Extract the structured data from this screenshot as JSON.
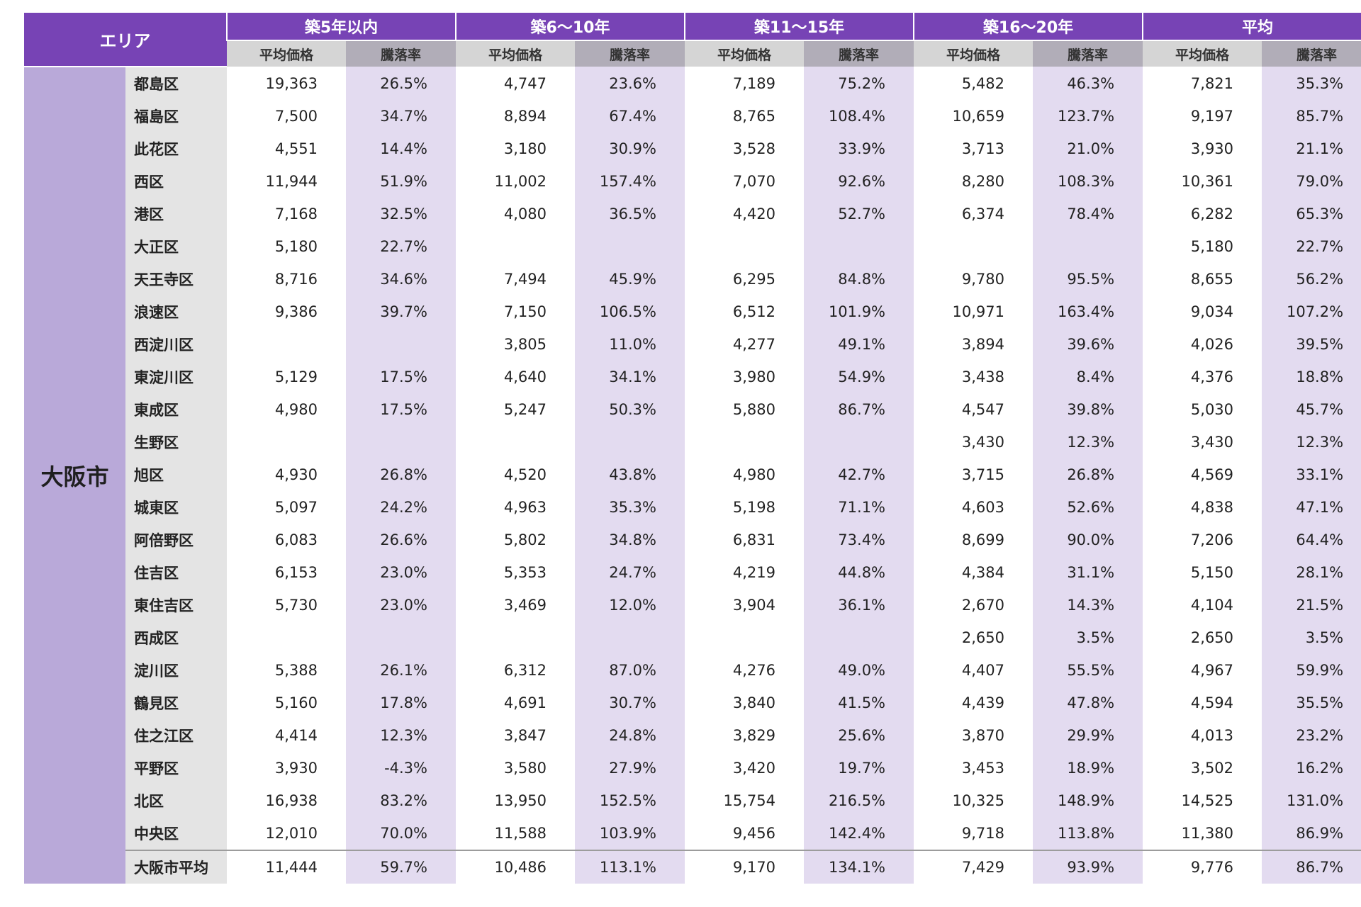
{
  "header": {
    "area_label": "エリア",
    "groups": [
      "築5年以内",
      "築6〜10年",
      "築11〜15年",
      "築16〜20年",
      "平均"
    ],
    "price_label": "平均価格",
    "rate_label": "騰落率"
  },
  "area": "大阪市",
  "rows": [
    {
      "name": "都島区",
      "v": [
        "19,363",
        "26.5%",
        "4,747",
        "23.6%",
        "7,189",
        "75.2%",
        "5,482",
        "46.3%",
        "7,821",
        "35.3%"
      ]
    },
    {
      "name": "福島区",
      "v": [
        "7,500",
        "34.7%",
        "8,894",
        "67.4%",
        "8,765",
        "108.4%",
        "10,659",
        "123.7%",
        "9,197",
        "85.7%"
      ]
    },
    {
      "name": "此花区",
      "v": [
        "4,551",
        "14.4%",
        "3,180",
        "30.9%",
        "3,528",
        "33.9%",
        "3,713",
        "21.0%",
        "3,930",
        "21.1%"
      ]
    },
    {
      "name": "西区",
      "v": [
        "11,944",
        "51.9%",
        "11,002",
        "157.4%",
        "7,070",
        "92.6%",
        "8,280",
        "108.3%",
        "10,361",
        "79.0%"
      ]
    },
    {
      "name": "港区",
      "v": [
        "7,168",
        "32.5%",
        "4,080",
        "36.5%",
        "4,420",
        "52.7%",
        "6,374",
        "78.4%",
        "6,282",
        "65.3%"
      ]
    },
    {
      "name": "大正区",
      "v": [
        "5,180",
        "22.7%",
        "",
        "",
        "",
        "",
        "",
        "",
        "5,180",
        "22.7%"
      ]
    },
    {
      "name": "天王寺区",
      "v": [
        "8,716",
        "34.6%",
        "7,494",
        "45.9%",
        "6,295",
        "84.8%",
        "9,780",
        "95.5%",
        "8,655",
        "56.2%"
      ]
    },
    {
      "name": "浪速区",
      "v": [
        "9,386",
        "39.7%",
        "7,150",
        "106.5%",
        "6,512",
        "101.9%",
        "10,971",
        "163.4%",
        "9,034",
        "107.2%"
      ]
    },
    {
      "name": "西淀川区",
      "v": [
        "",
        "",
        "3,805",
        "11.0%",
        "4,277",
        "49.1%",
        "3,894",
        "39.6%",
        "4,026",
        "39.5%"
      ]
    },
    {
      "name": "東淀川区",
      "v": [
        "5,129",
        "17.5%",
        "4,640",
        "34.1%",
        "3,980",
        "54.9%",
        "3,438",
        "8.4%",
        "4,376",
        "18.8%"
      ]
    },
    {
      "name": "東成区",
      "v": [
        "4,980",
        "17.5%",
        "5,247",
        "50.3%",
        "5,880",
        "86.7%",
        "4,547",
        "39.8%",
        "5,030",
        "45.7%"
      ]
    },
    {
      "name": "生野区",
      "v": [
        "",
        "",
        "",
        "",
        "",
        "",
        "3,430",
        "12.3%",
        "3,430",
        "12.3%"
      ]
    },
    {
      "name": "旭区",
      "v": [
        "4,930",
        "26.8%",
        "4,520",
        "43.8%",
        "4,980",
        "42.7%",
        "3,715",
        "26.8%",
        "4,569",
        "33.1%"
      ]
    },
    {
      "name": "城東区",
      "v": [
        "5,097",
        "24.2%",
        "4,963",
        "35.3%",
        "5,198",
        "71.1%",
        "4,603",
        "52.6%",
        "4,838",
        "47.1%"
      ]
    },
    {
      "name": "阿倍野区",
      "v": [
        "6,083",
        "26.6%",
        "5,802",
        "34.8%",
        "6,831",
        "73.4%",
        "8,699",
        "90.0%",
        "7,206",
        "64.4%"
      ]
    },
    {
      "name": "住吉区",
      "v": [
        "6,153",
        "23.0%",
        "5,353",
        "24.7%",
        "4,219",
        "44.8%",
        "4,384",
        "31.1%",
        "5,150",
        "28.1%"
      ]
    },
    {
      "name": "東住吉区",
      "v": [
        "5,730",
        "23.0%",
        "3,469",
        "12.0%",
        "3,904",
        "36.1%",
        "2,670",
        "14.3%",
        "4,104",
        "21.5%"
      ]
    },
    {
      "name": "西成区",
      "v": [
        "",
        "",
        "",
        "",
        "",
        "",
        "2,650",
        "3.5%",
        "2,650",
        "3.5%"
      ]
    },
    {
      "name": "淀川区",
      "v": [
        "5,388",
        "26.1%",
        "6,312",
        "87.0%",
        "4,276",
        "49.0%",
        "4,407",
        "55.5%",
        "4,967",
        "59.9%"
      ]
    },
    {
      "name": "鶴見区",
      "v": [
        "5,160",
        "17.8%",
        "4,691",
        "30.7%",
        "3,840",
        "41.5%",
        "4,439",
        "47.8%",
        "4,594",
        "35.5%"
      ]
    },
    {
      "name": "住之江区",
      "v": [
        "4,414",
        "12.3%",
        "3,847",
        "24.8%",
        "3,829",
        "25.6%",
        "3,870",
        "29.9%",
        "4,013",
        "23.2%"
      ]
    },
    {
      "name": "平野区",
      "v": [
        "3,930",
        "-4.3%",
        "3,580",
        "27.9%",
        "3,420",
        "19.7%",
        "3,453",
        "18.9%",
        "3,502",
        "16.2%"
      ]
    },
    {
      "name": "北区",
      "v": [
        "16,938",
        "83.2%",
        "13,950",
        "152.5%",
        "15,754",
        "216.5%",
        "10,325",
        "148.9%",
        "14,525",
        "131.0%"
      ]
    },
    {
      "name": "中央区",
      "v": [
        "12,010",
        "70.0%",
        "11,588",
        "103.9%",
        "9,456",
        "142.4%",
        "9,718",
        "113.8%",
        "11,380",
        "86.9%"
      ]
    }
  ],
  "average": {
    "name": "大阪市平均",
    "v": [
      "11,444",
      "59.7%",
      "10,486",
      "113.1%",
      "9,170",
      "134.1%",
      "7,429",
      "93.9%",
      "9,776",
      "86.7%"
    ]
  }
}
